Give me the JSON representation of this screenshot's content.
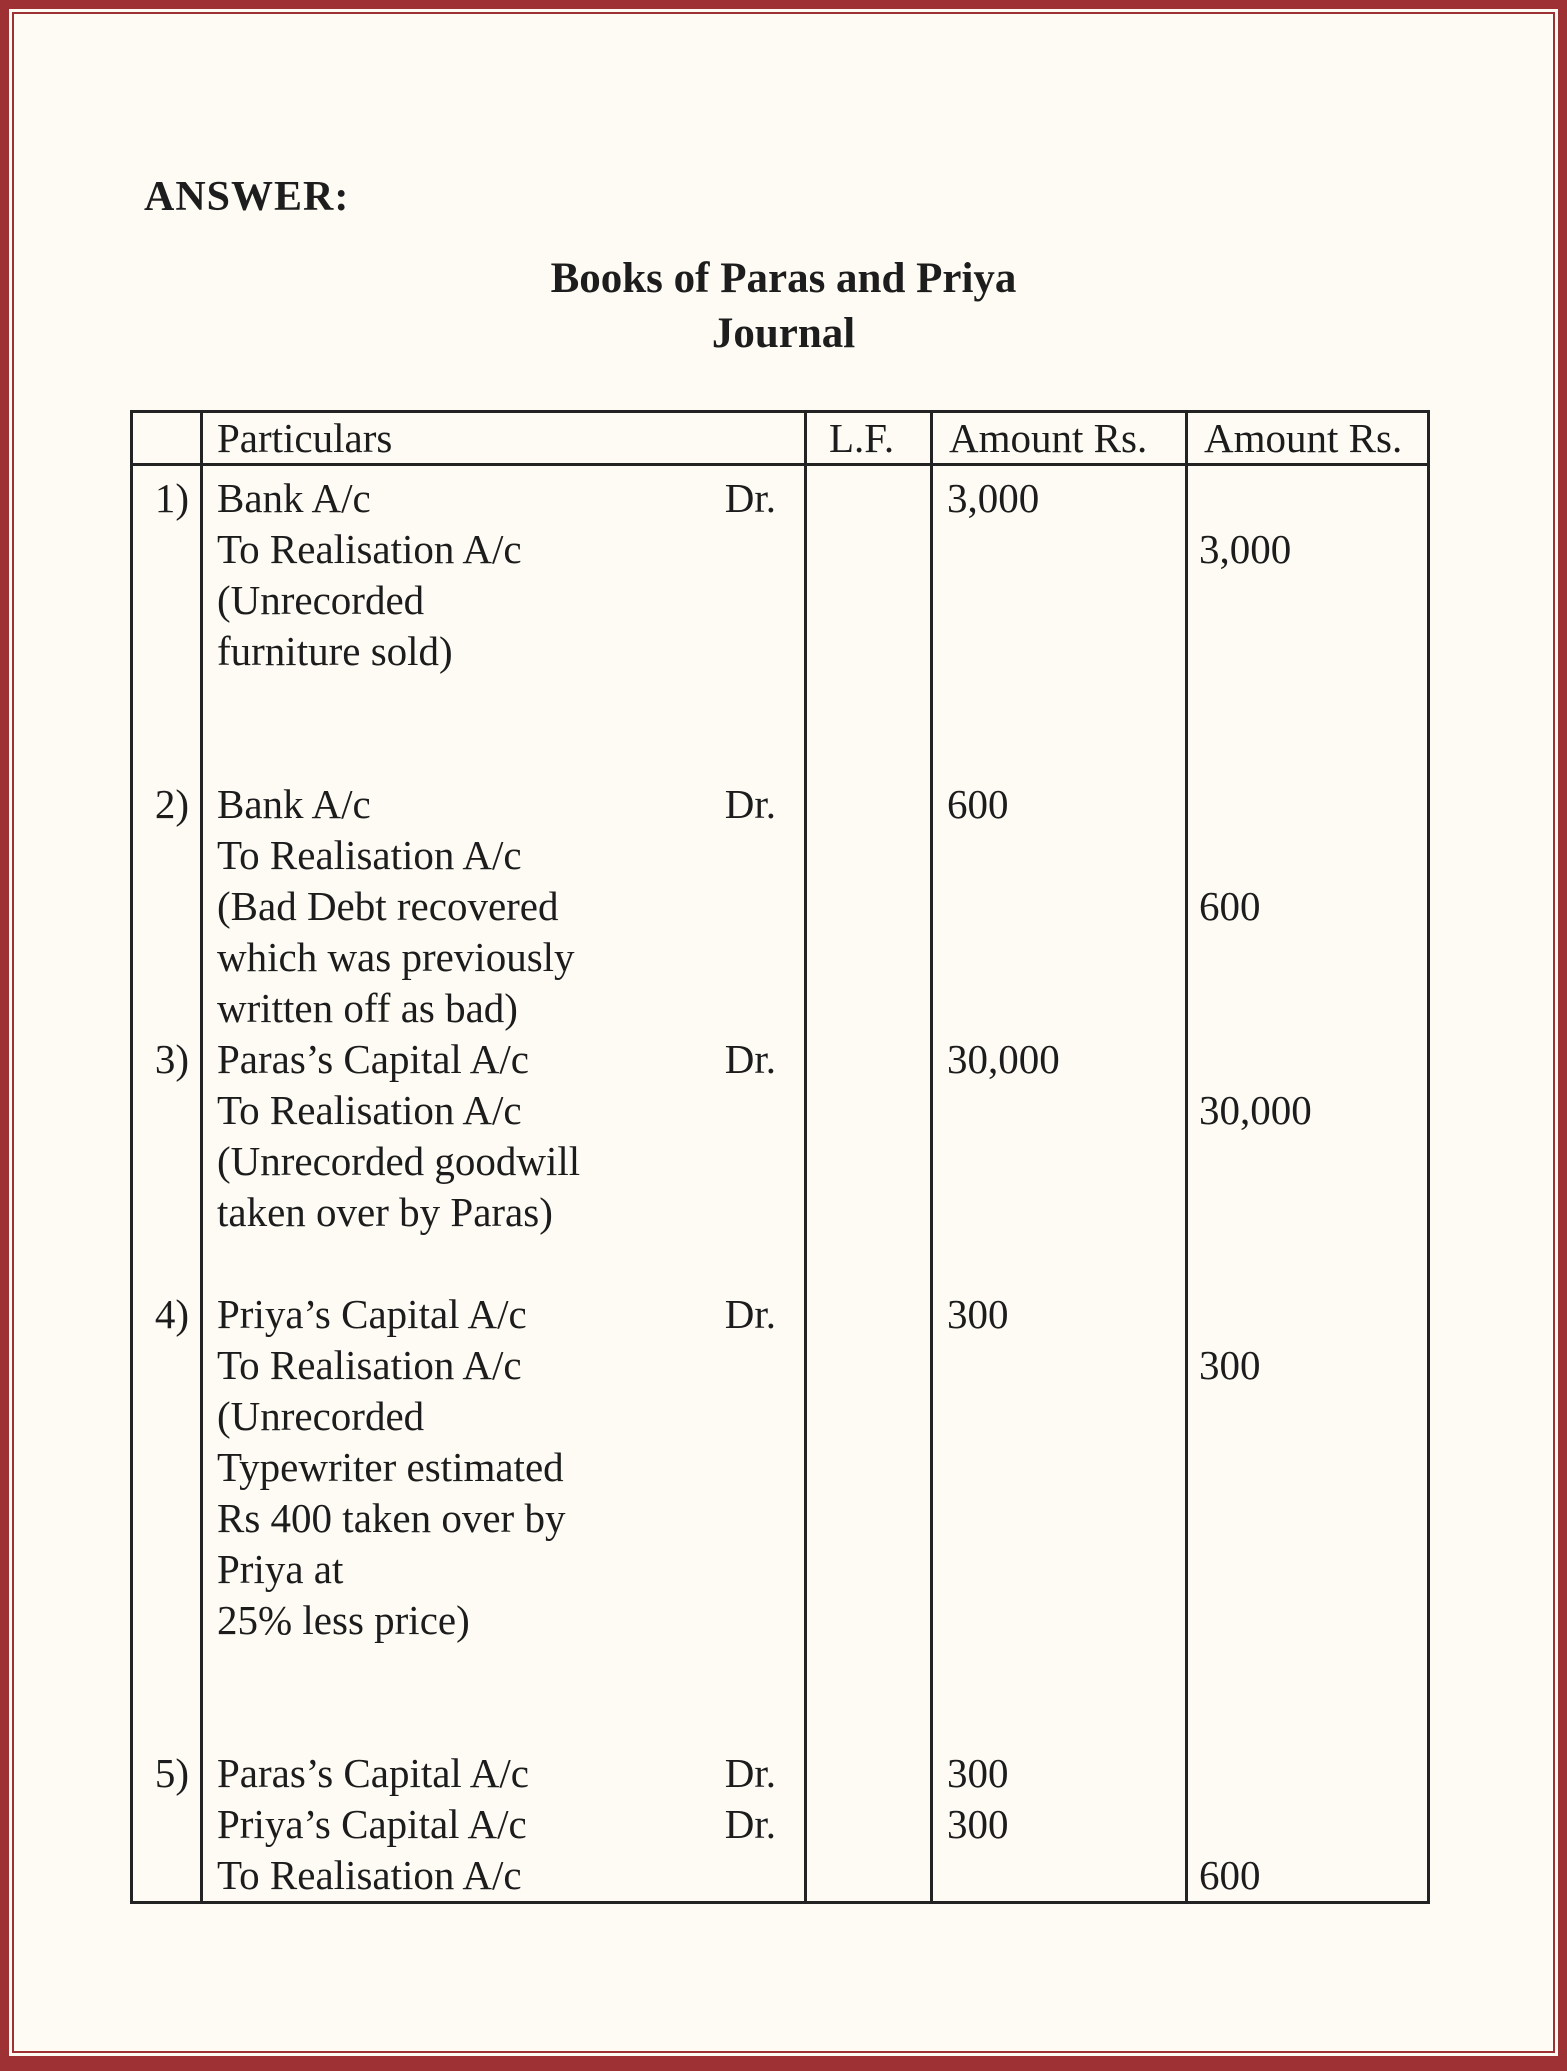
{
  "colors": {
    "frame_red": "#9d3134",
    "paper_cream": "#fdfbf4",
    "table_line_black": "#232323",
    "text_black": "#1c1c1c"
  },
  "header": {
    "answer_label": "ANSWER:",
    "book_title": "Books of Paras and Priya",
    "subtitle": "Journal"
  },
  "table": {
    "column_headers": [
      "",
      "Particulars",
      "L.F.",
      "Amount Rs.",
      "Amount Rs."
    ],
    "entries": [
      {
        "num": "1)",
        "lines": [
          {
            "text": "Bank A/c",
            "dr": "Dr."
          },
          {
            "text": "To Realisation A/c"
          },
          {
            "text": "(Unrecorded"
          },
          {
            "text": "furniture sold)"
          }
        ],
        "debit": [
          {
            "line": 0,
            "amount": "3,000"
          }
        ],
        "credit": [
          {
            "line": 1,
            "amount": "3,000"
          }
        ],
        "blank_lines_after": 2
      },
      {
        "num": "2)",
        "lines": [
          {
            "text": "Bank A/c",
            "dr": "Dr."
          },
          {
            "text": "To Realisation A/c"
          },
          {
            "text": "(Bad Debt recovered"
          },
          {
            "text": "which was previously"
          },
          {
            "text": "written off as bad)"
          }
        ],
        "debit": [
          {
            "line": 0,
            "amount": "600"
          }
        ],
        "credit": [
          {
            "line": 2,
            "amount": "600"
          }
        ],
        "blank_lines_after": 0
      },
      {
        "num": "3)",
        "lines": [
          {
            "text": "Paras’s Capital A/c",
            "dr": "Dr."
          },
          {
            "text": "To Realisation A/c"
          },
          {
            "text": "(Unrecorded goodwill"
          },
          {
            "text": "taken over by Paras)"
          }
        ],
        "debit": [
          {
            "line": 0,
            "amount": "30,000"
          }
        ],
        "credit": [
          {
            "line": 1,
            "amount": "30,000"
          }
        ],
        "blank_lines_after": 1
      },
      {
        "num": "4)",
        "lines": [
          {
            "text": "Priya’s Capital A/c",
            "dr": "Dr."
          },
          {
            "text": "To Realisation A/c"
          },
          {
            "text": "(Unrecorded"
          },
          {
            "text": "Typewriter estimated"
          },
          {
            "text": "Rs 400 taken over by"
          },
          {
            "text": "Priya at"
          },
          {
            "text": "25% less price)"
          }
        ],
        "debit": [
          {
            "line": 0,
            "amount": "300"
          }
        ],
        "credit": [
          {
            "line": 1,
            "amount": "300"
          }
        ],
        "blank_lines_after": 2
      },
      {
        "num": "5)",
        "lines": [
          {
            "text": "Paras’s Capital A/c",
            "dr": "Dr."
          },
          {
            "text": "Priya’s Capital A/c",
            "dr": "Dr."
          },
          {
            "text": "To Realisation A/c"
          }
        ],
        "debit": [
          {
            "line": 0,
            "amount": "300"
          },
          {
            "line": 1,
            "amount": "300"
          }
        ],
        "credit": [
          {
            "line": 2,
            "amount": "600"
          }
        ],
        "blank_lines_after": 0
      }
    ]
  }
}
